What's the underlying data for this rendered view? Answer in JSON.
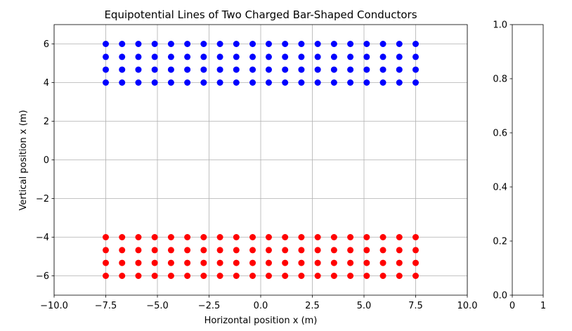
{
  "chart_data": [
    {
      "type": "scatter",
      "title": "Equipotential Lines of Two Charged Bar-Shaped Conductors",
      "x_label": "Horizontal position x (m)",
      "y_label": "Vertical position x (m)",
      "xlim": [
        -10,
        10
      ],
      "ylim": [
        -7,
        7
      ],
      "xticks": [
        {
          "value": -10,
          "label": "−10.0"
        },
        {
          "value": -7.5,
          "label": "−7.5"
        },
        {
          "value": -5,
          "label": "−5.0"
        },
        {
          "value": -2.5,
          "label": "−2.5"
        },
        {
          "value": 0,
          "label": "0.0"
        },
        {
          "value": 2.5,
          "label": "2.5"
        },
        {
          "value": 5,
          "label": "5.0"
        },
        {
          "value": 7.5,
          "label": "7.5"
        },
        {
          "value": 10,
          "label": "10.0"
        }
      ],
      "yticks": [
        {
          "value": -6,
          "label": "−6"
        },
        {
          "value": -4,
          "label": "−4"
        },
        {
          "value": -2,
          "label": "−2"
        },
        0,
        2,
        4,
        6
      ],
      "grid": true,
      "series": [
        {
          "color": "#0000ff",
          "x": [
            -7.5,
            -6.71,
            -5.92,
            -5.13,
            -4.34,
            -3.55,
            -2.76,
            -1.97,
            -1.18,
            -0.39,
            0.39,
            1.18,
            1.97,
            2.76,
            3.55,
            4.34,
            5.13,
            5.92,
            6.71,
            7.5
          ],
          "y": [
            4,
            4,
            4,
            4,
            4,
            4,
            4,
            4,
            4,
            4,
            4,
            4,
            4,
            4,
            4,
            4,
            4,
            4,
            4,
            4
          ]
        },
        {
          "color": "#0000ff",
          "x": [
            -7.5,
            -6.71,
            -5.92,
            -5.13,
            -4.34,
            -3.55,
            -2.76,
            -1.97,
            -1.18,
            -0.39,
            0.39,
            1.18,
            1.97,
            2.76,
            3.55,
            4.34,
            5.13,
            5.92,
            6.71,
            7.5
          ],
          "y": [
            4.67,
            4.67,
            4.67,
            4.67,
            4.67,
            4.67,
            4.67,
            4.67,
            4.67,
            4.67,
            4.67,
            4.67,
            4.67,
            4.67,
            4.67,
            4.67,
            4.67,
            4.67,
            4.67,
            4.67
          ]
        },
        {
          "color": "#0000ff",
          "x": [
            -7.5,
            -6.71,
            -5.92,
            -5.13,
            -4.34,
            -3.55,
            -2.76,
            -1.97,
            -1.18,
            -0.39,
            0.39,
            1.18,
            1.97,
            2.76,
            3.55,
            4.34,
            5.13,
            5.92,
            6.71,
            7.5
          ],
          "y": [
            5.33,
            5.33,
            5.33,
            5.33,
            5.33,
            5.33,
            5.33,
            5.33,
            5.33,
            5.33,
            5.33,
            5.33,
            5.33,
            5.33,
            5.33,
            5.33,
            5.33,
            5.33,
            5.33,
            5.33
          ]
        },
        {
          "color": "#0000ff",
          "x": [
            -7.5,
            -6.71,
            -5.92,
            -5.13,
            -4.34,
            -3.55,
            -2.76,
            -1.97,
            -1.18,
            -0.39,
            0.39,
            1.18,
            1.97,
            2.76,
            3.55,
            4.34,
            5.13,
            5.92,
            6.71,
            7.5
          ],
          "y": [
            6,
            6,
            6,
            6,
            6,
            6,
            6,
            6,
            6,
            6,
            6,
            6,
            6,
            6,
            6,
            6,
            6,
            6,
            6,
            6
          ]
        },
        {
          "color": "#ff0000",
          "x": [
            -7.5,
            -6.71,
            -5.92,
            -5.13,
            -4.34,
            -3.55,
            -2.76,
            -1.97,
            -1.18,
            -0.39,
            0.39,
            1.18,
            1.97,
            2.76,
            3.55,
            4.34,
            5.13,
            5.92,
            6.71,
            7.5
          ],
          "y": [
            -4,
            -4,
            -4,
            -4,
            -4,
            -4,
            -4,
            -4,
            -4,
            -4,
            -4,
            -4,
            -4,
            -4,
            -4,
            -4,
            -4,
            -4,
            -4,
            -4
          ]
        },
        {
          "color": "#ff0000",
          "x": [
            -7.5,
            -6.71,
            -5.92,
            -5.13,
            -4.34,
            -3.55,
            -2.76,
            -1.97,
            -1.18,
            -0.39,
            0.39,
            1.18,
            1.97,
            2.76,
            3.55,
            4.34,
            5.13,
            5.92,
            6.71,
            7.5
          ],
          "y": [
            -4.67,
            -4.67,
            -4.67,
            -4.67,
            -4.67,
            -4.67,
            -4.67,
            -4.67,
            -4.67,
            -4.67,
            -4.67,
            -4.67,
            -4.67,
            -4.67,
            -4.67,
            -4.67,
            -4.67,
            -4.67,
            -4.67,
            -4.67
          ]
        },
        {
          "color": "#ff0000",
          "x": [
            -7.5,
            -6.71,
            -5.92,
            -5.13,
            -4.34,
            -3.55,
            -2.76,
            -1.97,
            -1.18,
            -0.39,
            0.39,
            1.18,
            1.97,
            2.76,
            3.55,
            4.34,
            5.13,
            5.92,
            6.71,
            7.5
          ],
          "y": [
            -5.33,
            -5.33,
            -5.33,
            -5.33,
            -5.33,
            -5.33,
            -5.33,
            -5.33,
            -5.33,
            -5.33,
            -5.33,
            -5.33,
            -5.33,
            -5.33,
            -5.33,
            -5.33,
            -5.33,
            -5.33,
            -5.33,
            -5.33
          ]
        },
        {
          "color": "#ff0000",
          "x": [
            -7.5,
            -6.71,
            -5.92,
            -5.13,
            -4.34,
            -3.55,
            -2.76,
            -1.97,
            -1.18,
            -0.39,
            0.39,
            1.18,
            1.97,
            2.76,
            3.55,
            4.34,
            5.13,
            5.92,
            6.71,
            7.5
          ],
          "y": [
            -6,
            -6,
            -6,
            -6,
            -6,
            -6,
            -6,
            -6,
            -6,
            -6,
            -6,
            -6,
            -6,
            -6,
            -6,
            -6,
            -6,
            -6,
            -6,
            -6
          ]
        }
      ]
    },
    {
      "type": "axes",
      "xlim": [
        0,
        1
      ],
      "ylim": [
        0,
        1
      ],
      "xticks": [
        0,
        1
      ],
      "yticks": [
        {
          "value": 0,
          "label": "0.0"
        },
        {
          "value": 0.2,
          "label": "0.2"
        },
        {
          "value": 0.4,
          "label": "0.4"
        },
        {
          "value": 0.6,
          "label": "0.6"
        },
        {
          "value": 0.8,
          "label": "0.8"
        },
        {
          "value": 1,
          "label": "1.0"
        }
      ]
    }
  ]
}
